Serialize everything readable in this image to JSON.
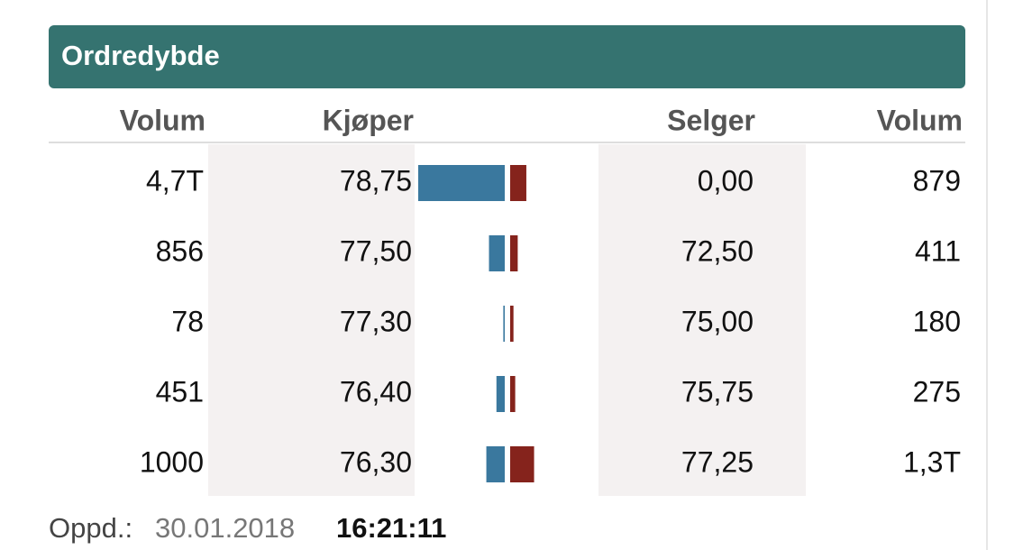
{
  "header": {
    "title": "Ordredybde"
  },
  "table": {
    "columns": [
      "Volum",
      "Kjøper",
      "Selger",
      "Volum"
    ],
    "rows": [
      {
        "buy_volume": {
          "value": 4700,
          "label": "4,7T"
        },
        "buy_price": "78,75",
        "sell_price": "0,00",
        "sell_volume": 879
      },
      {
        "buy_volume": 856,
        "buy_price": "77,50",
        "sell_price": "72,50",
        "sell_volume": 411
      },
      {
        "buy_volume": 78,
        "buy_price": "77,30",
        "sell_price": "75,00",
        "sell_volume": 180
      },
      {
        "buy_volume": 451,
        "buy_price": "76,40",
        "sell_price": "75,75",
        "sell_volume": 275
      },
      {
        "buy_volume": 1000,
        "buy_price": "76,30",
        "sell_price": "77,25",
        "sell_volume": {
          "value": 1300,
          "label": "1,3T"
        }
      }
    ]
  },
  "footer": {
    "label": "Oppd.:",
    "date": "30.01.2018",
    "time": "16:21:11"
  }
}
